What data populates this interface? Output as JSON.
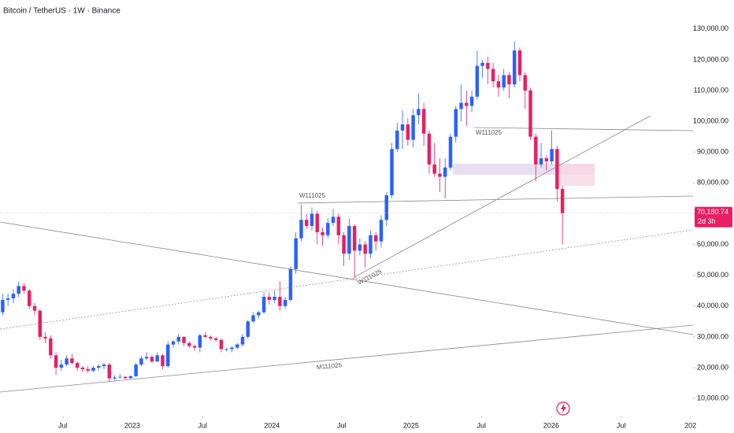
{
  "chart_data": {
    "type": "candlestick",
    "title": "Bitcoin / TetherUS · 1W · Binance",
    "up_color": "#2962ff",
    "down_color": "#e91e63",
    "open": [
      38000,
      42000,
      42500,
      44000,
      46500,
      45000,
      40000,
      38500,
      30000,
      29500,
      24000,
      20000,
      21000,
      23000,
      21500,
      20000,
      19500,
      19000,
      20000,
      20500,
      21000,
      16500,
      16800,
      17000,
      16600,
      17200,
      21000,
      23000,
      23500,
      22000,
      24000,
      20500,
      27500,
      28500,
      30000,
      28000,
      27000,
      26500,
      30500,
      30000,
      29500,
      29000,
      26000,
      26000,
      26500,
      27500,
      30000,
      35000,
      37000,
      38000,
      43000,
      42000,
      43000,
      40000,
      42000,
      52000,
      62000,
      68000,
      66000,
      70000,
      64000,
      63000,
      67000,
      69000,
      63000,
      57000,
      66000,
      58000,
      60000,
      57000,
      63000,
      61000,
      68000,
      76000,
      91000,
      97000,
      99000,
      94000,
      102000,
      104000,
      96000,
      86000,
      83000,
      82000,
      85000,
      95000,
      104000,
      106000,
      105000,
      108000,
      118000,
      119000,
      117000,
      113000,
      111000,
      115000,
      112000,
      123000,
      115000,
      110000,
      95000,
      86000,
      88000,
      87000,
      91000,
      78000
    ],
    "high": [
      44000,
      44000,
      45500,
      48000,
      47500,
      45500,
      41000,
      39000,
      31500,
      30500,
      25000,
      22500,
      24000,
      24500,
      22000,
      20500,
      20500,
      20500,
      21000,
      21500,
      21500,
      17500,
      18000,
      17300,
      17500,
      21500,
      23800,
      25000,
      24000,
      25000,
      24500,
      28500,
      29000,
      31000,
      30200,
      28500,
      27500,
      31000,
      31500,
      30500,
      30000,
      29500,
      26500,
      27000,
      28000,
      31000,
      35500,
      38000,
      38500,
      44500,
      44500,
      45000,
      48000,
      43000,
      53000,
      64000,
      73000,
      70000,
      72000,
      71000,
      65500,
      68500,
      71500,
      70000,
      64000,
      68500,
      66500,
      62000,
      61000,
      64500,
      64000,
      69500,
      77000,
      93000,
      99500,
      103500,
      101000,
      104000,
      109000,
      106000,
      97000,
      93000,
      88000,
      88000,
      96000,
      105000,
      112000,
      110000,
      110000,
      123000,
      120000,
      121000,
      119000,
      115000,
      117000,
      116000,
      126000,
      124000,
      116000,
      111000,
      96000,
      93000,
      89000,
      97000,
      92000,
      79000
    ],
    "low": [
      37000,
      40000,
      41000,
      43000,
      44000,
      39000,
      37000,
      29000,
      28000,
      23000,
      17600,
      18900,
      20500,
      21000,
      19000,
      18500,
      18300,
      18500,
      19000,
      19500,
      15500,
      15800,
      16500,
      16300,
      16400,
      17000,
      20500,
      22500,
      21500,
      21800,
      19500,
      20000,
      26500,
      27500,
      27000,
      26500,
      25500,
      25000,
      29500,
      29000,
      28500,
      25000,
      25300,
      25000,
      26000,
      26800,
      29500,
      34500,
      36000,
      37500,
      40500,
      41000,
      38500,
      39000,
      41500,
      50500,
      61000,
      65000,
      64500,
      60000,
      59500,
      62000,
      66000,
      60000,
      53000,
      55000,
      49000,
      56500,
      52500,
      55500,
      58000,
      59000,
      66000,
      75000,
      90000,
      91000,
      92000,
      91500,
      99000,
      92000,
      83000,
      82000,
      77000,
      75000,
      84000,
      93000,
      100000,
      98500,
      103000,
      107000,
      114000,
      112000,
      111000,
      108000,
      110000,
      107500,
      111000,
      113000,
      104000,
      94000,
      80500,
      85000,
      84000,
      86000,
      74000,
      60000
    ],
    "close": [
      42000,
      42500,
      44000,
      46500,
      45000,
      40000,
      38500,
      30000,
      29500,
      24000,
      20000,
      21000,
      23000,
      21500,
      20000,
      19500,
      19000,
      20000,
      20500,
      21000,
      16500,
      16800,
      17000,
      16600,
      17200,
      21000,
      23000,
      23500,
      22000,
      24000,
      20500,
      27500,
      28500,
      30000,
      28000,
      27000,
      26500,
      30500,
      30000,
      29500,
      29000,
      26000,
      26000,
      26500,
      27500,
      30000,
      35000,
      37000,
      38000,
      43000,
      42000,
      43000,
      40000,
      42000,
      52000,
      62000,
      68000,
      66000,
      70000,
      64000,
      63000,
      67000,
      69000,
      63000,
      57000,
      66000,
      58000,
      60000,
      57000,
      63000,
      61000,
      68000,
      76000,
      91000,
      97000,
      99000,
      94000,
      102000,
      104000,
      96000,
      86000,
      83000,
      82000,
      85000,
      95000,
      104000,
      106000,
      105000,
      108000,
      118000,
      119000,
      117000,
      113000,
      111000,
      115000,
      112000,
      123000,
      115000,
      110000,
      95000,
      86000,
      88000,
      87000,
      91000,
      78000,
      70180.74
    ],
    "last_price_label": "70,180.74",
    "countdown": "2d 3h",
    "annotations": [
      "W111025",
      "W111025",
      "W111025",
      "M111025"
    ],
    "xlim": [
      -0.5,
      129.5
    ],
    "xticks": [
      {
        "value": 11.3,
        "label": "Jul"
      },
      {
        "value": 24.3,
        "label": "2023"
      },
      {
        "value": 37.5,
        "label": "Jul"
      },
      {
        "value": 50.5,
        "label": "2024"
      },
      {
        "value": 63.6,
        "label": "Jul"
      },
      {
        "value": 76.6,
        "label": "2025"
      },
      {
        "value": 89.8,
        "label": "Jul"
      },
      {
        "value": 102.9,
        "label": "2026"
      },
      {
        "value": 116.0,
        "label": "Jul"
      },
      {
        "value": 129.0,
        "label": "202"
      }
    ],
    "ylim": [
      4400,
      139400
    ],
    "yticks": [
      {
        "value": 130000,
        "label": "130,000.00"
      },
      {
        "value": 120000,
        "label": "120,000.00"
      },
      {
        "value": 110000,
        "label": "110,000.00"
      },
      {
        "value": 100000,
        "label": "100,000.00"
      },
      {
        "value": 90000,
        "label": "90,000.00"
      },
      {
        "value": 80000,
        "label": "80,000.00"
      },
      {
        "value": 70000,
        "label": "70,000.00"
      },
      {
        "value": 60000,
        "label": "60,000.00"
      },
      {
        "value": 50000,
        "label": "50,000.00"
      },
      {
        "value": 40000,
        "label": "40,000.00"
      },
      {
        "value": 30000,
        "label": "30,000.00"
      },
      {
        "value": 20000,
        "label": "20,000.00"
      },
      {
        "value": 10000,
        "label": "10,000.00"
      }
    ]
  }
}
